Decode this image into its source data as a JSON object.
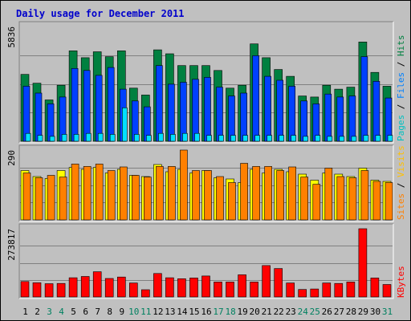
{
  "chart_data": {
    "type": "bar",
    "title": "Daily usage for December 2011",
    "days": [
      "1",
      "2",
      "3",
      "4",
      "5",
      "6",
      "7",
      "8",
      "9",
      "10",
      "11",
      "12",
      "13",
      "14",
      "15",
      "16",
      "17",
      "18",
      "19",
      "20",
      "21",
      "22",
      "23",
      "24",
      "25",
      "26",
      "27",
      "28",
      "29",
      "30",
      "31"
    ],
    "weekend_days": [
      "3",
      "4",
      "10",
      "11",
      "17",
      "18",
      "24",
      "25",
      "31"
    ],
    "panels": [
      {
        "name": "hits-files-pages",
        "max_label": "5836",
        "ymax": 5836,
        "series": [
          {
            "name": "Hits",
            "color": "#008040",
            "values": [
              3400,
              2950,
              2100,
              2850,
              4600,
              4250,
              4550,
              4300,
              4600,
              2700,
              2350,
              4650,
              4450,
              3850,
              3850,
              3850,
              3600,
              2700,
              2850,
              4950,
              4250,
              3650,
              3300,
              2300,
              2250,
              2850,
              2650,
              2750,
              5050,
              3500,
              2800
            ]
          },
          {
            "name": "Files",
            "color": "#0040ff",
            "values": [
              2800,
              2450,
              1900,
              2250,
              3700,
              3600,
              3350,
              3750,
              2650,
              2050,
              1750,
              3850,
              2900,
              3000,
              3150,
              3250,
              2750,
              2300,
              2450,
              4350,
              3300,
              3100,
              2800,
              2050,
              1900,
              2400,
              2250,
              2300,
              4300,
              3050,
              2200
            ]
          },
          {
            "name": "Pages",
            "color": "#00e0ff",
            "values": [
              400,
              300,
              250,
              350,
              350,
              400,
              400,
              350,
              1700,
              350,
              300,
              400,
              350,
              400,
              400,
              300,
              300,
              300,
              300,
              300,
              300,
              300,
              300,
              250,
              300,
              250,
              250,
              250,
              300,
              300,
              300
            ]
          }
        ]
      },
      {
        "name": "visits-sites",
        "max_label": "290",
        "ymax": 290,
        "series": [
          {
            "name": "Visits",
            "color": "#ffff00",
            "values": [
              205,
              180,
              172,
              205,
              218,
              210,
              218,
              195,
              210,
              185,
              180,
              230,
              200,
              210,
              195,
              205,
              175,
              170,
              155,
              210,
              195,
              210,
              200,
              190,
              165,
              195,
              190,
              180,
              215,
              165,
              160
            ]
          },
          {
            "name": "Sites",
            "color": "#ff8000",
            "values": [
              195,
              175,
              185,
              178,
              232,
              222,
              232,
              205,
              220,
              185,
              178,
              222,
              222,
              290,
              205,
              205,
              180,
              155,
              235,
              222,
              222,
              205,
              220,
              178,
              148,
              215,
              180,
              175,
              205,
              160,
              155
            ]
          }
        ]
      },
      {
        "name": "kbytes",
        "max_label": "273817",
        "ymax": 273817,
        "series": [
          {
            "name": "KBytes",
            "color": "#ff0000",
            "values": [
              62000,
              57000,
              53000,
              54000,
              77000,
              82000,
              101000,
              74000,
              80000,
              56000,
              29000,
              94000,
              77000,
              73000,
              76000,
              84000,
              60000,
              60000,
              89000,
              60000,
              126000,
              114000,
              56000,
              30000,
              32000,
              56000,
              54000,
              60000,
              273817,
              76000,
              50000
            ]
          }
        ]
      }
    ],
    "legends": [
      {
        "parts": [
          "Pages",
          "Files",
          "Hits"
        ],
        "colors": [
          "#00c0c0",
          "#0080ff",
          "#008040"
        ]
      },
      {
        "parts": [
          "Sites",
          "Visits"
        ],
        "colors": [
          "#ff8000",
          "#ffc000"
        ]
      },
      {
        "parts": [
          "KBytes"
        ],
        "colors": [
          "#ff0000"
        ]
      }
    ],
    "grid": true
  }
}
